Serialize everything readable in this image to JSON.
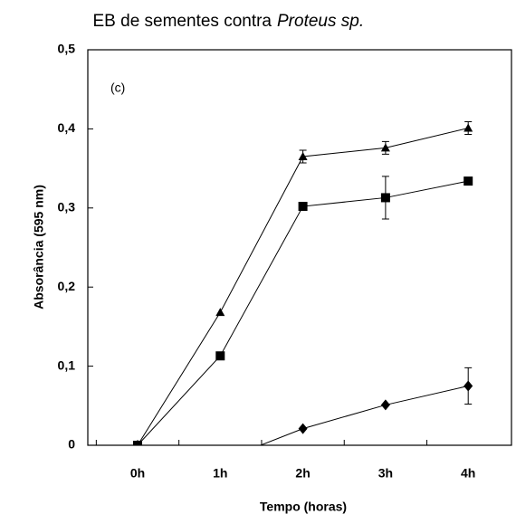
{
  "chart_data": {
    "type": "line",
    "title": "EB de sementes contra",
    "title_italic": "Proteus  sp.",
    "panel_label": "(c)",
    "x_label": "Tempo (horas)",
    "y_label": "Absorância (595 nm)",
    "categories": [
      "0h",
      "1h",
      "2h",
      "3h",
      "4h"
    ],
    "series": [
      {
        "marker": "triangle",
        "color": "#000000",
        "values": [
          0,
          0.168,
          0.365,
          0.376,
          0.401
        ],
        "errors": [
          0,
          0,
          0.008,
          0.008,
          0.008
        ]
      },
      {
        "marker": "square",
        "color": "#000000",
        "values": [
          0,
          0.113,
          0.302,
          0.313,
          0.334
        ],
        "errors": [
          0,
          0,
          0,
          0.027,
          0
        ]
      },
      {
        "marker": "diamond",
        "color": "#000000",
        "values": [
          0,
          -0.02,
          0.021,
          0.051,
          0.075
        ],
        "errors": [
          0,
          0,
          0,
          0,
          0.023
        ]
      }
    ],
    "ylim": [
      0,
      0.5
    ],
    "yticks": [
      0,
      {
        "value": 0.1,
        "label": "0,1"
      },
      {
        "value": 0.2,
        "label": "0,2"
      },
      {
        "value": 0.3,
        "label": "0,3"
      },
      {
        "value": 0.4,
        "label": "0,4"
      },
      {
        "value": 0.5,
        "label": "0,5"
      }
    ]
  }
}
